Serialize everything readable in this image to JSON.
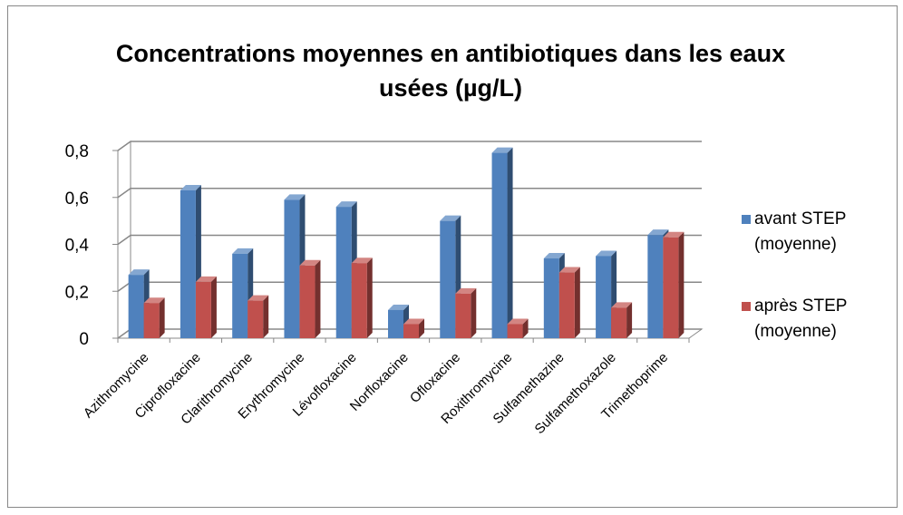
{
  "chart_data": {
    "type": "bar3d",
    "title": "Concentrations moyennes en antibiotiques dans les eaux usées (µg/L)",
    "categories": [
      "Azithromycine",
      "Ciprofloxacine",
      "Clarithromycine",
      "Erythromycine",
      "Lévofloxacine",
      "Norfloxacine",
      "Ofloxacine",
      "Roxithromycine",
      "Sulfamethazine",
      "Sulfamethoxazole",
      "Trimethoprime"
    ],
    "series": [
      {
        "name": "avant STEP (moyenne)",
        "color": "#4f81bd",
        "values": [
          0.27,
          0.63,
          0.36,
          0.59,
          0.56,
          0.12,
          0.5,
          0.79,
          0.34,
          0.35,
          0.44
        ]
      },
      {
        "name": "après STEP (moyenne)",
        "color": "#c0504d",
        "values": [
          0.15,
          0.24,
          0.16,
          0.31,
          0.32,
          0.06,
          0.19,
          0.06,
          0.28,
          0.13,
          0.43
        ]
      }
    ],
    "ylim": [
      0,
      0.8
    ],
    "yticks": [
      0,
      {
        "value": 0.2,
        "label": "0,2"
      },
      {
        "value": 0.4,
        "label": "0,4"
      },
      {
        "value": 0.6,
        "label": "0,6"
      },
      {
        "value": 0.8,
        "label": "0,8"
      }
    ],
    "grid": true,
    "legend": "right"
  }
}
